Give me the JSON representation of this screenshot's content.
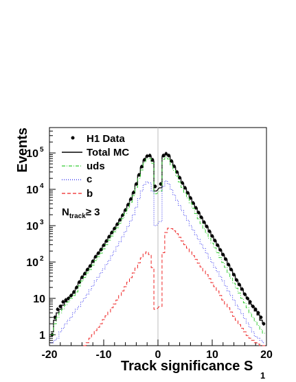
{
  "chart_data": {
    "type": "line",
    "title": "",
    "xlabel": "Track significance S",
    "xlabel_subscript": "1",
    "ylabel": "Events",
    "xlim": [
      -20,
      20
    ],
    "ylim": [
      0.5,
      500000
    ],
    "yscale": "log",
    "x_ticks": [
      "-20",
      "-10",
      "0",
      "10",
      "20"
    ],
    "y_ticks": [
      {
        "base": "1",
        "exp": ""
      },
      {
        "base": "10",
        "exp": ""
      },
      {
        "base": "10",
        "exp": "2"
      },
      {
        "base": "10",
        "exp": "3"
      },
      {
        "base": "10",
        "exp": "4"
      },
      {
        "base": "10",
        "exp": "5"
      }
    ],
    "y_tick_values": [
      1,
      10,
      100,
      1000,
      10000,
      100000
    ],
    "grid": false,
    "legend_placement": "top-left",
    "annotation": {
      "base": "N",
      "sub": "track",
      "rest": "≥ 3"
    },
    "series": [
      {
        "name": "H1 Data",
        "style": "points",
        "color": "#000000",
        "x": [
          -19.5,
          -19,
          -18.5,
          -18,
          -17.5,
          -17,
          -16.5,
          -16,
          -15.5,
          -15,
          -14.5,
          -14,
          -13.5,
          -13,
          -12.5,
          -12,
          -11.5,
          -11,
          -10.5,
          -10,
          -9.5,
          -9,
          -8.5,
          -8,
          -7.5,
          -7,
          -6.5,
          -6,
          -5.5,
          -5,
          -4.5,
          -4,
          -3.5,
          -3,
          -2.5,
          -2,
          -1.5,
          -1,
          -0.5,
          0.5,
          1,
          1.5,
          2,
          2.5,
          3,
          3.5,
          4,
          4.5,
          5,
          5.5,
          6,
          6.5,
          7,
          7.5,
          8,
          8.5,
          9,
          9.5,
          10,
          10.5,
          11,
          11.5,
          12,
          12.5,
          13,
          13.5,
          14,
          14.5,
          15,
          15.5,
          16,
          16.5,
          17,
          17.5,
          18,
          18.5,
          19,
          19.5
        ],
        "values": [
          1,
          3,
          5,
          6,
          8,
          9,
          10,
          12,
          15,
          20,
          28,
          38,
          48,
          62,
          78,
          105,
          140,
          175,
          220,
          290,
          380,
          500,
          650,
          840,
          1100,
          1450,
          1950,
          2700,
          3800,
          5400,
          8200,
          14000,
          25000,
          42000,
          65000,
          82000,
          85000,
          65000,
          12000,
          14000,
          85000,
          95000,
          85000,
          60000,
          43000,
          30000,
          21000,
          15000,
          11000,
          8000,
          5800,
          4200,
          3100,
          2300,
          1700,
          1250,
          950,
          700,
          520,
          390,
          290,
          215,
          160,
          120,
          85,
          62,
          45,
          32,
          24,
          18,
          13,
          10,
          8,
          6,
          5,
          4,
          3,
          2
        ]
      },
      {
        "name": "Total MC",
        "style": "solid",
        "color": "#000000",
        "x": [
          -19.5,
          -19,
          -18.5,
          -18,
          -17.5,
          -17,
          -16.5,
          -16,
          -15.5,
          -15,
          -14.5,
          -14,
          -13.5,
          -13,
          -12.5,
          -12,
          -11.5,
          -11,
          -10.5,
          -10,
          -9.5,
          -9,
          -8.5,
          -8,
          -7.5,
          -7,
          -6.5,
          -6,
          -5.5,
          -5,
          -4.5,
          -4,
          -3.5,
          -3,
          -2.5,
          -2,
          -1.5,
          -1,
          -0.5,
          0.5,
          1,
          1.5,
          2,
          2.5,
          3,
          3.5,
          4,
          4.5,
          5,
          5.5,
          6,
          6.5,
          7,
          7.5,
          8,
          8.5,
          9,
          9.5,
          10,
          10.5,
          11,
          11.5,
          12,
          12.5,
          13,
          13.5,
          14,
          14.5,
          15,
          15.5,
          16,
          16.5,
          17,
          17.5,
          18,
          18.5,
          19,
          19.5
        ],
        "values": [
          1.2,
          2.5,
          4,
          5,
          6.5,
          8,
          10,
          12,
          14,
          19,
          27,
          36,
          46,
          60,
          75,
          100,
          135,
          170,
          215,
          285,
          370,
          490,
          640,
          830,
          1080,
          1420,
          1900,
          2650,
          3700,
          5300,
          8000,
          13500,
          24000,
          40000,
          63000,
          80000,
          82000,
          60000,
          9000,
          11000,
          80000,
          92000,
          82000,
          58000,
          41000,
          29000,
          20500,
          14500,
          10500,
          7700,
          5600,
          4100,
          3000,
          2200,
          1650,
          1200,
          920,
          680,
          500,
          380,
          280,
          210,
          155,
          115,
          82,
          60,
          43,
          31,
          23,
          17,
          13,
          10,
          7,
          6,
          4.5,
          3.5,
          2.5,
          2
        ]
      },
      {
        "name": "uds",
        "style": "dash-dot",
        "color": "#33cc33",
        "x": [
          -19.5,
          -19,
          -18.5,
          -18,
          -17.5,
          -17,
          -16.5,
          -16,
          -15.5,
          -15,
          -14.5,
          -14,
          -13.5,
          -13,
          -12.5,
          -12,
          -11.5,
          -11,
          -10.5,
          -10,
          -9.5,
          -9,
          -8.5,
          -8,
          -7.5,
          -7,
          -6.5,
          -6,
          -5.5,
          -5,
          -4.5,
          -4,
          -3.5,
          -3,
          -2.5,
          -2,
          -1.5,
          -1,
          -0.5,
          0.5,
          1,
          1.5,
          2,
          2.5,
          3,
          3.5,
          4,
          4.5,
          5,
          5.5,
          6,
          6.5,
          7,
          7.5,
          8,
          8.5,
          9,
          9.5,
          10,
          10.5,
          11,
          11.5,
          12,
          12.5,
          13,
          13.5,
          14,
          14.5,
          15,
          15.5,
          16,
          16.5,
          17,
          17.5,
          18,
          18.5,
          19,
          19.5
        ],
        "values": [
          1,
          2,
          3,
          4,
          5,
          6.5,
          8,
          10,
          12,
          15,
          22,
          30,
          38,
          50,
          62,
          82,
          110,
          140,
          175,
          230,
          300,
          400,
          520,
          680,
          880,
          1160,
          1560,
          2180,
          3050,
          4400,
          6700,
          11300,
          20000,
          34000,
          54000,
          68000,
          70000,
          52000,
          7500,
          9000,
          67000,
          77000,
          68000,
          47000,
          33000,
          23000,
          16000,
          11200,
          8000,
          5800,
          4200,
          3000,
          2150,
          1550,
          1140,
          820,
          620,
          450,
          330,
          245,
          180,
          132,
          97,
          71,
          50,
          36,
          26,
          19,
          14,
          10,
          7.5,
          5.5,
          4,
          3,
          2.3,
          1.8,
          1.4,
          1.1
        ]
      },
      {
        "name": "c",
        "style": "dotted",
        "color": "#2222ee",
        "x": [
          -19.5,
          -19,
          -18.5,
          -18,
          -17.5,
          -17,
          -16.5,
          -16,
          -15.5,
          -15,
          -14.5,
          -14,
          -13.5,
          -13,
          -12.5,
          -12,
          -11.5,
          -11,
          -10.5,
          -10,
          -9.5,
          -9,
          -8.5,
          -8,
          -7.5,
          -7,
          -6.5,
          -6,
          -5.5,
          -5,
          -4.5,
          -4,
          -3.5,
          -3,
          -2.5,
          -2,
          -1.5,
          -1,
          -0.5,
          0.5,
          1,
          1.5,
          2,
          2.5,
          3,
          3.5,
          4,
          4.5,
          5,
          5.5,
          6,
          6.5,
          7,
          7.5,
          8,
          8.5,
          9,
          9.5,
          10,
          10.5,
          11,
          11.5,
          12,
          12.5,
          13,
          13.5,
          14,
          14.5,
          15,
          15.5,
          16,
          16.5,
          17,
          17.5,
          18,
          18.5,
          19,
          19.5
        ],
        "values": [
          0.6,
          0.7,
          0.8,
          1.2,
          1.5,
          2,
          2.5,
          3,
          4,
          5,
          6,
          8,
          10,
          13,
          17,
          22,
          30,
          38,
          50,
          65,
          85,
          110,
          150,
          200,
          270,
          360,
          500,
          680,
          950,
          1350,
          2000,
          3200,
          5500,
          9000,
          13500,
          16000,
          15000,
          9000,
          1000,
          1300,
          12000,
          17000,
          14000,
          9800,
          7000,
          5000,
          3600,
          2600,
          1900,
          1400,
          1000,
          760,
          560,
          420,
          310,
          235,
          175,
          130,
          97,
          72,
          54,
          40,
          30,
          22,
          16,
          12,
          9,
          6.5,
          5,
          3.8,
          2.8,
          2.1,
          1.6,
          1.2,
          0.9,
          0.8,
          0.7,
          0.6
        ]
      },
      {
        "name": "b",
        "style": "dashed",
        "color": "#ee2222",
        "x": [
          -13.5,
          -13,
          -12.5,
          -12,
          -11.5,
          -11,
          -10.5,
          -10,
          -9.5,
          -9,
          -8.5,
          -8,
          -7.5,
          -7,
          -6.5,
          -6,
          -5.5,
          -5,
          -4.5,
          -4,
          -3.5,
          -3,
          -2.5,
          -2,
          -1.5,
          -1,
          -0.5,
          0.5,
          1,
          1.5,
          2,
          2.5,
          3,
          3.5,
          4,
          4.5,
          5,
          5.5,
          6,
          6.5,
          7,
          7.5,
          8,
          8.5,
          9,
          9.5,
          10,
          10.5,
          11,
          11.5,
          12,
          12.5,
          13,
          13.5,
          14,
          14.5,
          15,
          15.5,
          16,
          16.5,
          17,
          17.5,
          18,
          18.5,
          19,
          19.5
        ],
        "values": [
          0.5,
          0.6,
          0.8,
          1,
          1.3,
          1.6,
          2,
          2.6,
          3.3,
          4.2,
          5.5,
          7,
          9,
          12,
          16,
          21,
          28,
          37,
          50,
          68,
          95,
          130,
          170,
          190,
          160,
          70,
          5,
          6,
          180,
          650,
          850,
          830,
          720,
          600,
          480,
          380,
          300,
          240,
          190,
          150,
          118,
          93,
          73,
          57,
          45,
          35,
          27,
          21,
          16,
          12,
          9,
          7,
          5.5,
          4.2,
          3.2,
          2.5,
          1.9,
          1.5,
          1.2,
          0.95,
          0.8,
          0.7,
          0.6,
          0.55,
          0.5,
          0.5
        ]
      }
    ]
  }
}
